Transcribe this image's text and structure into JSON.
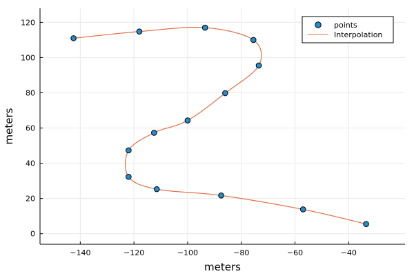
{
  "chart_data": {
    "type": "scatter",
    "title": "",
    "xlabel": "meters",
    "ylabel": "meters",
    "xlim": [
      -155,
      -19
    ],
    "ylim": [
      -6,
      128
    ],
    "xticks": [
      -140,
      -120,
      -100,
      -80,
      -60,
      -40
    ],
    "yticks": [
      0,
      20,
      40,
      60,
      80,
      100,
      120
    ],
    "grid": true,
    "legend_position": "top-right",
    "series": [
      {
        "name": "points",
        "kind": "scatter",
        "color": "#1f8ecf",
        "x": [
          -142.5,
          -118,
          -93.5,
          -75.5,
          -73.5,
          -86,
          -100,
          -112.5,
          -122,
          -122,
          -111.5,
          -87.5,
          -57,
          -33.5
        ],
        "y": [
          111,
          114.8,
          117,
          110,
          95.5,
          79.8,
          64.3,
          57.3,
          47.3,
          32.3,
          25.3,
          21.7,
          13.8,
          5.5
        ]
      },
      {
        "name": "Interpolation",
        "kind": "line",
        "color": "#e26f46"
      }
    ]
  }
}
